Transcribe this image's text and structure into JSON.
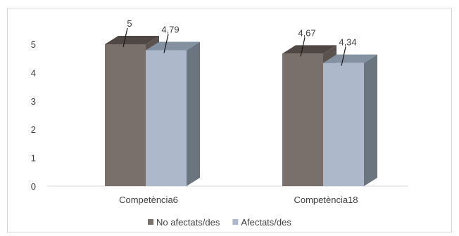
{
  "chart_data": {
    "type": "bar",
    "style": "3d-clustered-column",
    "categories": [
      "Competència6",
      "Competència18"
    ],
    "series": [
      {
        "name": "No afectats/des",
        "values": [
          5,
          4.67
        ],
        "labels": [
          "5",
          "4,67"
        ],
        "color": "#7a706b",
        "side_color": "#5a524e",
        "top_color": "#4e4744"
      },
      {
        "name": "Afectats/des",
        "values": [
          4.79,
          4.34
        ],
        "labels": [
          "4,79",
          "4,34"
        ],
        "color": "#adb9ca",
        "side_color": "#6b7580",
        "top_color": "#8391a0"
      }
    ],
    "yticks": [
      "0",
      "1",
      "2",
      "3",
      "4",
      "5"
    ],
    "ylim": [
      0,
      5
    ],
    "grid": false,
    "legend": "bottom",
    "title": "",
    "xlabel": "",
    "ylabel": ""
  }
}
